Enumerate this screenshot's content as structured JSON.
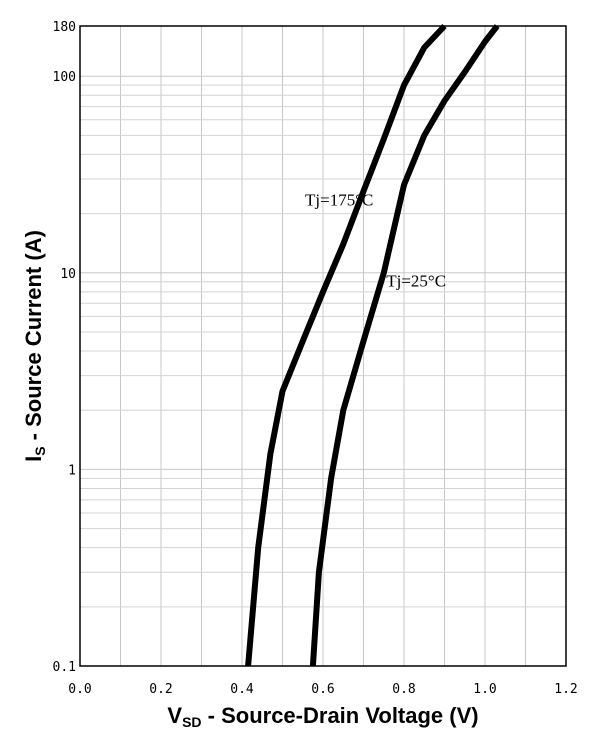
{
  "chart_data": {
    "type": "line",
    "title": "",
    "xlabel": {
      "main": "V",
      "sub": "SD",
      "rest": " - Source-Drain Voltage (V)"
    },
    "ylabel": {
      "main": "I",
      "sub": "S",
      "rest": " - Source Current (A)"
    },
    "xlim": [
      0.0,
      1.2
    ],
    "ylim": [
      0.1,
      180
    ],
    "y_scale": "log",
    "grid": true,
    "x_ticks": [
      0.0,
      0.2,
      0.4,
      0.6,
      0.8,
      1.0,
      1.2
    ],
    "x_tick_labels": [
      "0.0",
      "0.2",
      "0.4",
      "0.6",
      "0.8",
      "1.0",
      "1.2"
    ],
    "y_ticks": [
      0.1,
      1,
      10,
      100,
      180
    ],
    "y_tick_labels": [
      "0.1",
      "1",
      "10",
      "100",
      "180"
    ],
    "series": [
      {
        "name": "Tj=175°C",
        "x": [
          0.415,
          0.44,
          0.47,
          0.5,
          0.55,
          0.6,
          0.65,
          0.7,
          0.75,
          0.8,
          0.85,
          0.9
        ],
        "y": [
          0.1,
          0.4,
          1.2,
          2.5,
          4.5,
          8.0,
          14.0,
          26.0,
          48.0,
          90.0,
          140.0,
          180.0
        ]
      },
      {
        "name": "Tj=25°C",
        "x": [
          0.575,
          0.59,
          0.62,
          0.65,
          0.7,
          0.75,
          0.8,
          0.85,
          0.9,
          0.95,
          1.0,
          1.03
        ],
        "y": [
          0.1,
          0.3,
          0.9,
          2.0,
          4.5,
          10.0,
          28.0,
          50.0,
          75.0,
          105.0,
          150.0,
          180.0
        ]
      }
    ],
    "annotations": [
      {
        "text": "Tj=175°C",
        "x": 0.64,
        "y": 22
      },
      {
        "text": "Tj=25°C",
        "x": 0.83,
        "y": 8.5
      }
    ]
  }
}
